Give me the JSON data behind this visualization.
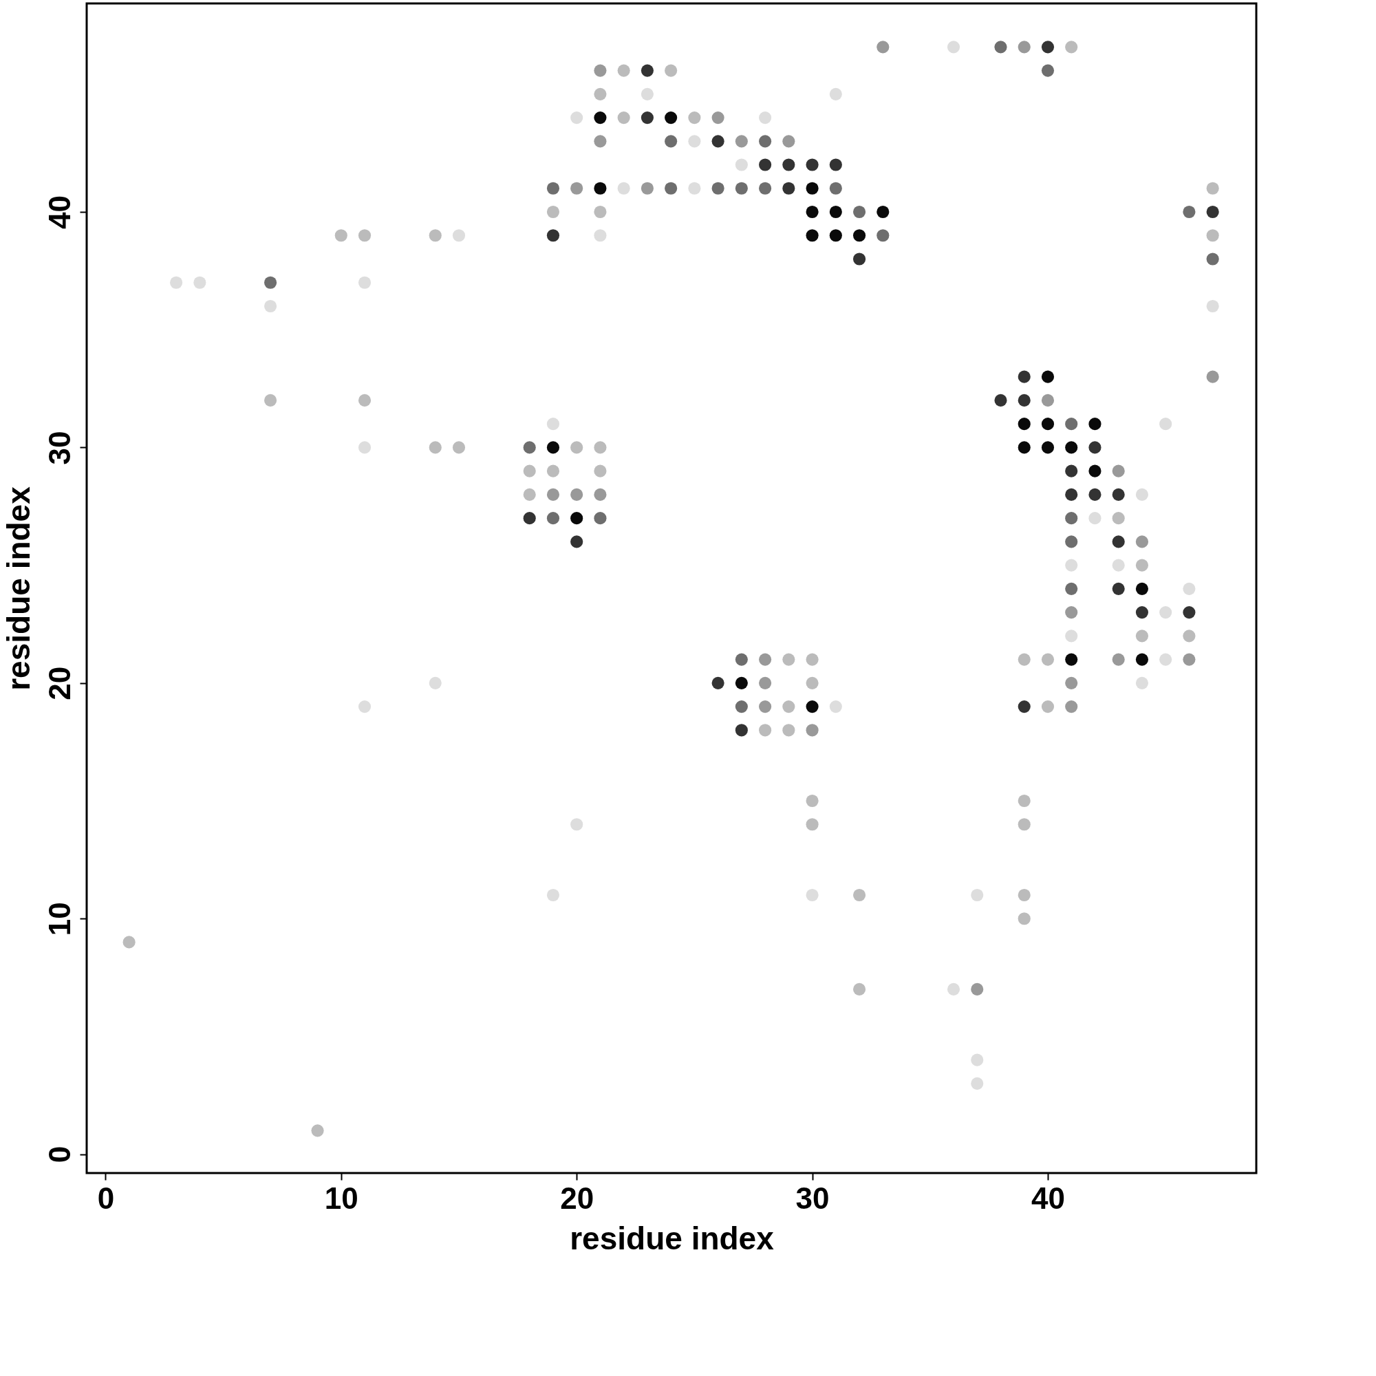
{
  "chart_data": {
    "type": "scatter",
    "xlabel": "residue index",
    "ylabel": "residue index",
    "xlim": [
      -0.8,
      48.85
    ],
    "ylim": [
      -0.8,
      48.85
    ],
    "xticks": [
      0,
      10,
      20,
      30,
      40
    ],
    "yticks": [
      0,
      10,
      20,
      30,
      40
    ],
    "grid": false,
    "marker": "circle",
    "x": [
      33,
      36,
      38,
      39,
      40,
      41,
      21,
      22,
      23,
      24,
      40,
      21,
      23,
      31,
      20,
      21,
      22,
      23,
      24,
      25,
      26,
      28,
      21,
      24,
      25,
      26,
      27,
      28,
      29,
      27,
      28,
      29,
      30,
      31,
      19,
      20,
      21,
      22,
      23,
      24,
      25,
      26,
      27,
      28,
      29,
      30,
      31,
      47,
      19,
      21,
      30,
      31,
      32,
      33,
      46,
      47,
      10,
      11,
      14,
      15,
      19,
      21,
      30,
      31,
      32,
      33,
      47,
      32,
      47,
      3,
      4,
      7,
      11,
      7,
      47,
      39,
      40,
      47,
      7,
      11,
      38,
      39,
      40,
      19,
      39,
      40,
      41,
      42,
      45,
      11,
      14,
      15,
      18,
      19,
      20,
      21,
      39,
      40,
      41,
      42,
      18,
      19,
      21,
      41,
      42,
      43,
      18,
      19,
      20,
      21,
      41,
      42,
      43,
      44,
      18,
      19,
      20,
      21,
      41,
      42,
      43,
      20,
      41,
      43,
      44,
      41,
      43,
      44,
      41,
      43,
      44,
      46,
      41,
      44,
      45,
      46,
      41,
      44,
      46,
      27,
      28,
      29,
      30,
      39,
      40,
      41,
      43,
      44,
      45,
      46,
      14,
      26,
      27,
      28,
      30,
      41,
      44,
      11,
      27,
      28,
      29,
      30,
      31,
      39,
      40,
      41,
      27,
      28,
      29,
      30,
      30,
      39,
      20,
      30,
      39,
      19,
      30,
      32,
      37,
      39,
      39,
      1,
      32,
      36,
      37,
      37,
      37,
      9
    ],
    "values": [
      47,
      47,
      47,
      47,
      47,
      47,
      46,
      46,
      46,
      46,
      46,
      45,
      45,
      45,
      44,
      44,
      44,
      44,
      44,
      44,
      44,
      44,
      43,
      43,
      43,
      43,
      43,
      43,
      43,
      42,
      42,
      42,
      42,
      42,
      41,
      41,
      41,
      41,
      41,
      41,
      41,
      41,
      41,
      41,
      41,
      41,
      41,
      41,
      40,
      40,
      40,
      40,
      40,
      40,
      40,
      40,
      39,
      39,
      39,
      39,
      39,
      39,
      39,
      39,
      39,
      39,
      39,
      38,
      38,
      37,
      37,
      37,
      37,
      36,
      36,
      33,
      33,
      33,
      32,
      32,
      32,
      32,
      32,
      31,
      31,
      31,
      31,
      31,
      31,
      30,
      30,
      30,
      30,
      30,
      30,
      30,
      30,
      30,
      30,
      30,
      29,
      29,
      29,
      29,
      29,
      29,
      28,
      28,
      28,
      28,
      28,
      28,
      28,
      28,
      27,
      27,
      27,
      27,
      27,
      27,
      27,
      26,
      26,
      26,
      26,
      25,
      25,
      25,
      24,
      24,
      24,
      24,
      23,
      23,
      23,
      23,
      22,
      22,
      22,
      21,
      21,
      21,
      21,
      21,
      21,
      21,
      21,
      21,
      21,
      21,
      20,
      20,
      20,
      20,
      20,
      20,
      20,
      19,
      19,
      19,
      19,
      19,
      19,
      19,
      19,
      19,
      18,
      18,
      18,
      18,
      15,
      15,
      14,
      14,
      14,
      11,
      11,
      11,
      11,
      11,
      10,
      9,
      7,
      7,
      7,
      4,
      3,
      1
    ],
    "colors": [
      "#999999",
      "#dddddd",
      "#6e6e6e",
      "#999999",
      "#333333",
      "#bbbbbb",
      "#999999",
      "#bbbbbb",
      "#333333",
      "#bbbbbb",
      "#6e6e6e",
      "#bbbbbb",
      "#dddddd",
      "#dddddd",
      "#dddddd",
      "#0a0a0a",
      "#bbbbbb",
      "#333333",
      "#0a0a0a",
      "#bbbbbb",
      "#999999",
      "#dddddd",
      "#999999",
      "#6e6e6e",
      "#dddddd",
      "#333333",
      "#999999",
      "#6e6e6e",
      "#999999",
      "#dddddd",
      "#333333",
      "#333333",
      "#333333",
      "#333333",
      "#6e6e6e",
      "#999999",
      "#0a0a0a",
      "#dddddd",
      "#999999",
      "#6e6e6e",
      "#dddddd",
      "#6e6e6e",
      "#6e6e6e",
      "#6e6e6e",
      "#333333",
      "#0a0a0a",
      "#6e6e6e",
      "#bbbbbb",
      "#bbbbbb",
      "#bbbbbb",
      "#0a0a0a",
      "#0a0a0a",
      "#6e6e6e",
      "#0a0a0a",
      "#6e6e6e",
      "#333333",
      "#bbbbbb",
      "#bbbbbb",
      "#bbbbbb",
      "#dddddd",
      "#333333",
      "#dddddd",
      "#0a0a0a",
      "#0a0a0a",
      "#0a0a0a",
      "#6e6e6e",
      "#bbbbbb",
      "#333333",
      "#6e6e6e",
      "#dddddd",
      "#dddddd",
      "#6e6e6e",
      "#dddddd",
      "#dddddd",
      "#dddddd",
      "#333333",
      "#0a0a0a",
      "#999999",
      "#bbbbbb",
      "#bbbbbb",
      "#333333",
      "#333333",
      "#999999",
      "#dddddd",
      "#0a0a0a",
      "#0a0a0a",
      "#6e6e6e",
      "#0a0a0a",
      "#dddddd",
      "#dddddd",
      "#bbbbbb",
      "#bbbbbb",
      "#6e6e6e",
      "#0a0a0a",
      "#bbbbbb",
      "#bbbbbb",
      "#0a0a0a",
      "#0a0a0a",
      "#0a0a0a",
      "#333333",
      "#bbbbbb",
      "#bbbbbb",
      "#bbbbbb",
      "#333333",
      "#0a0a0a",
      "#999999",
      "#bbbbbb",
      "#999999",
      "#999999",
      "#999999",
      "#333333",
      "#333333",
      "#333333",
      "#dddddd",
      "#333333",
      "#6e6e6e",
      "#0a0a0a",
      "#6e6e6e",
      "#6e6e6e",
      "#dddddd",
      "#bbbbbb",
      "#333333",
      "#6e6e6e",
      "#333333",
      "#999999",
      "#dddddd",
      "#dddddd",
      "#bbbbbb",
      "#6e6e6e",
      "#333333",
      "#0a0a0a",
      "#dddddd",
      "#999999",
      "#333333",
      "#dddddd",
      "#333333",
      "#dddddd",
      "#bbbbbb",
      "#bbbbbb",
      "#6e6e6e",
      "#999999",
      "#bbbbbb",
      "#bbbbbb",
      "#bbbbbb",
      "#bbbbbb",
      "#0a0a0a",
      "#999999",
      "#0a0a0a",
      "#dddddd",
      "#999999",
      "#dddddd",
      "#333333",
      "#0a0a0a",
      "#999999",
      "#bbbbbb",
      "#999999",
      "#dddddd",
      "#dddddd",
      "#6e6e6e",
      "#999999",
      "#bbbbbb",
      "#0a0a0a",
      "#dddddd",
      "#333333",
      "#bbbbbb",
      "#999999",
      "#333333",
      "#bbbbbb",
      "#bbbbbb",
      "#999999",
      "#bbbbbb",
      "#bbbbbb",
      "#dddddd",
      "#bbbbbb",
      "#bbbbbb",
      "#dddddd",
      "#dddddd",
      "#bbbbbb",
      "#dddddd",
      "#bbbbbb",
      "#bbbbbb",
      "#bbbbbb",
      "#bbbbbb",
      "#dddddd",
      "#999999",
      "#dddddd",
      "#dddddd",
      "#bbbbbb"
    ]
  }
}
